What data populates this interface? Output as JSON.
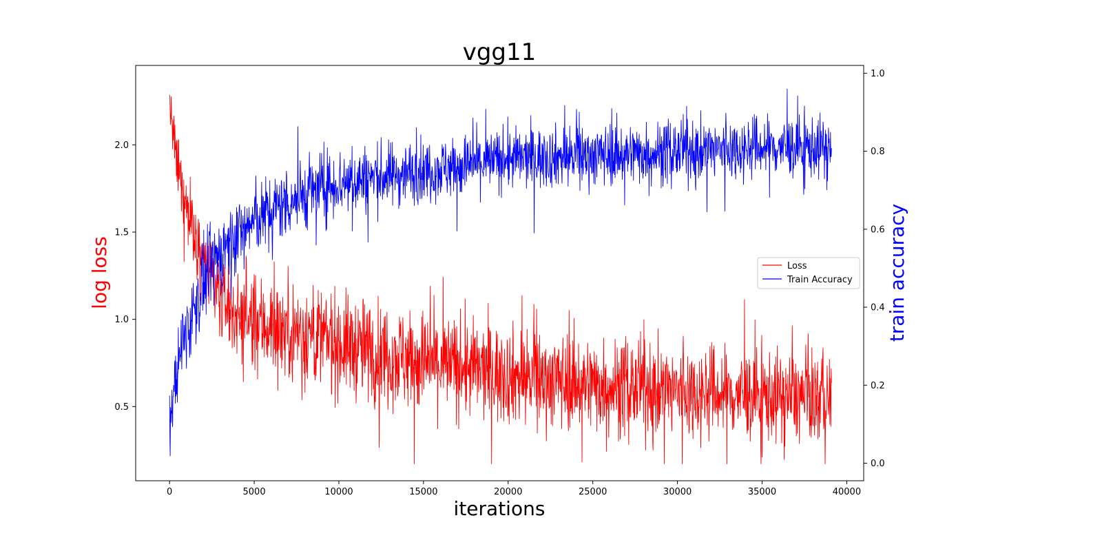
{
  "chart_data": {
    "type": "line",
    "title": "vgg11",
    "xlabel": "iterations",
    "ylabel_left": "log loss",
    "ylabel_right": "train accuracy",
    "xlim": [
      -2000,
      41000
    ],
    "ylim_left": [
      0.075,
      2.455
    ],
    "ylim_right": [
      -0.045,
      1.02
    ],
    "x_ticks": [
      0,
      5000,
      10000,
      15000,
      20000,
      25000,
      30000,
      35000,
      40000
    ],
    "y_ticks_left": [
      0.5,
      1.0,
      1.5,
      2.0
    ],
    "y_ticks_right": [
      0.0,
      0.2,
      0.4,
      0.6,
      0.8,
      1.0
    ],
    "grid": false,
    "legend_position": "center-right",
    "x_max_iteration": 39100,
    "series": [
      {
        "name": "Loss",
        "axis": "left",
        "color": "#ff0000",
        "trend_iterations": [
          0,
          200,
          500,
          1000,
          2000,
          3000,
          4000,
          5000,
          6000,
          8000,
          10000,
          15000,
          20000,
          25000,
          30000,
          35000,
          39000
        ],
        "trend_mean": [
          2.25,
          2.05,
          1.85,
          1.65,
          1.35,
          1.12,
          1.02,
          0.98,
          0.96,
          0.92,
          0.86,
          0.76,
          0.68,
          0.63,
          0.59,
          0.56,
          0.55
        ],
        "trend_spread": [
          0.1,
          0.14,
          0.16,
          0.18,
          0.2,
          0.2,
          0.22,
          0.24,
          0.25,
          0.26,
          0.26,
          0.26,
          0.25,
          0.24,
          0.24,
          0.23,
          0.23
        ],
        "observed_min": 0.17,
        "observed_max": 2.35
      },
      {
        "name": "Train Accuracy",
        "axis": "right",
        "color": "#0000ff",
        "trend_iterations": [
          0,
          200,
          500,
          1000,
          2000,
          3000,
          4000,
          5000,
          6000,
          8000,
          10000,
          15000,
          20000,
          25000,
          30000,
          35000,
          39000
        ],
        "trend_mean": [
          0.1,
          0.17,
          0.25,
          0.34,
          0.46,
          0.54,
          0.59,
          0.62,
          0.65,
          0.69,
          0.72,
          0.75,
          0.78,
          0.79,
          0.8,
          0.81,
          0.81
        ],
        "trend_spread": [
          0.06,
          0.07,
          0.08,
          0.09,
          0.09,
          0.09,
          0.08,
          0.08,
          0.08,
          0.08,
          0.08,
          0.07,
          0.07,
          0.07,
          0.07,
          0.07,
          0.07
        ],
        "observed_min": 0.0,
        "observed_max": 0.96
      }
    ]
  },
  "legend": {
    "items": [
      {
        "label": "Loss",
        "color": "#ff0000"
      },
      {
        "label": "Train Accuracy",
        "color": "#0000ff"
      }
    ]
  },
  "colors": {
    "left_axis_label": "#ff0000",
    "right_axis_label": "#0000ff"
  }
}
